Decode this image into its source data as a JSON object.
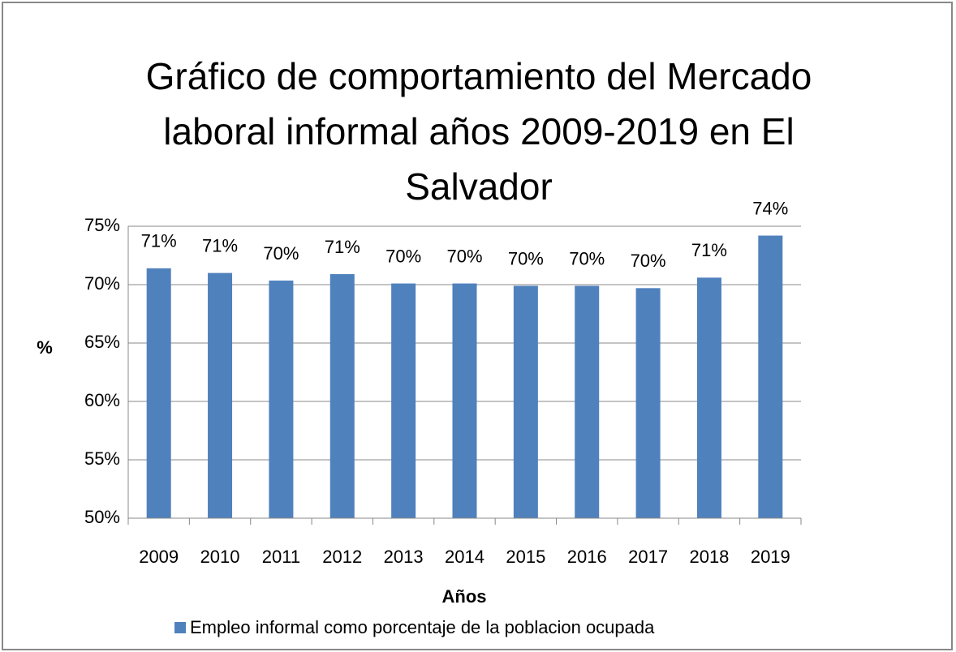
{
  "chart_data": {
    "type": "bar",
    "title": "Gráfico de comportamiento del Mercado laboral informal años 2009-2019 en El Salvador",
    "x_label": "Años",
    "y_label": "%",
    "categories": [
      "2009",
      "2010",
      "2011",
      "2012",
      "2013",
      "2014",
      "2015",
      "2016",
      "2017",
      "2018",
      "2019"
    ],
    "series": [
      {
        "name": "Empleo informal como porcentaje de la poblacion ocupada",
        "color": "#4f81bd",
        "values": [
          71.4,
          71.0,
          70.35,
          70.9,
          70.1,
          70.1,
          69.9,
          69.9,
          69.7,
          70.6,
          74.2
        ],
        "value_labels": [
          "71%",
          "71%",
          "70%",
          "71%",
          "70%",
          "70%",
          "70%",
          "70%",
          "70%",
          "71%",
          "74%"
        ]
      }
    ],
    "ylim": [
      50,
      75
    ],
    "yticks": [
      {
        "value": 50,
        "label": "50%"
      },
      {
        "value": 55,
        "label": "55%"
      },
      {
        "value": 60,
        "label": "60%"
      },
      {
        "value": 65,
        "label": "65%"
      },
      {
        "value": 70,
        "label": "70%"
      },
      {
        "value": 75,
        "label": "75%"
      }
    ],
    "grid": true,
    "legend": "bottom"
  }
}
